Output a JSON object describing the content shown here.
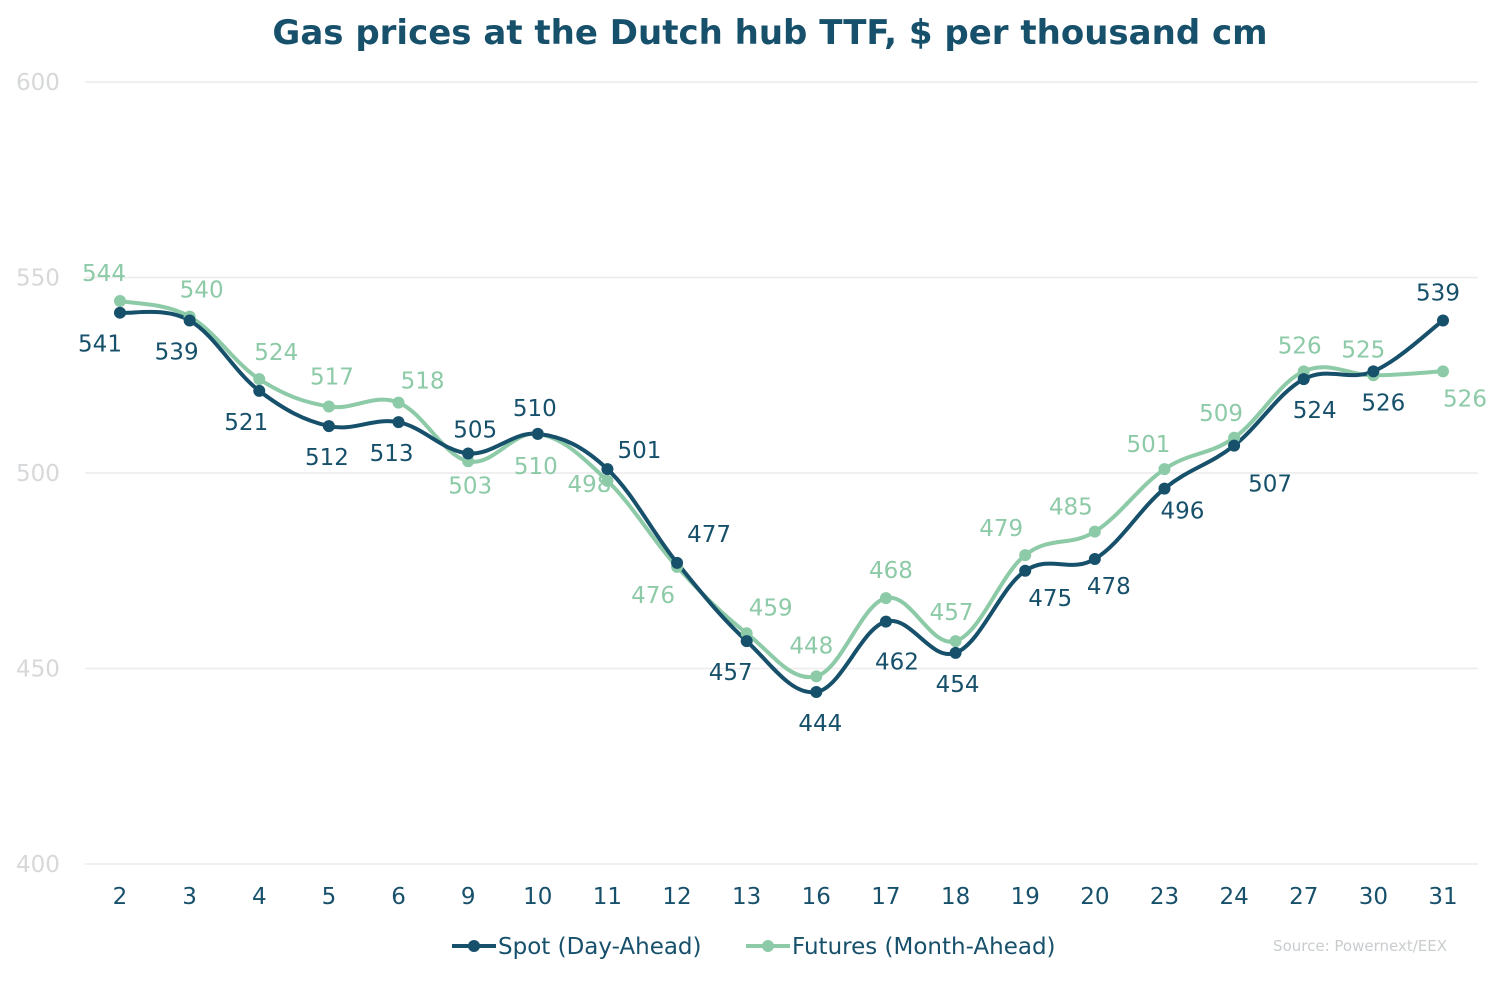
{
  "chart_data": {
    "type": "line",
    "title": "Gas prices at the Dutch hub TTF, $ per thousand cm",
    "source": "Source: Powernext/EEX",
    "categories": [
      "2",
      "3",
      "4",
      "5",
      "6",
      "9",
      "10",
      "11",
      "12",
      "13",
      "16",
      "17",
      "18",
      "19",
      "20",
      "23",
      "24",
      "27",
      "30",
      "31"
    ],
    "ylim": [
      400,
      600
    ],
    "yticks": [
      400,
      450,
      500,
      550,
      600
    ],
    "grid": true,
    "legend_position": "bottom",
    "series": [
      {
        "name": "Spot (Day-Ahead)",
        "color": "#17506b",
        "values": [
          541,
          539,
          521,
          512,
          513,
          505,
          510,
          501,
          477,
          457,
          444,
          462,
          454,
          475,
          478,
          496,
          507,
          524,
          526,
          539
        ],
        "labels": [
          "541",
          "539",
          "521",
          "512",
          "513",
          "505",
          "510",
          "501",
          "477",
          "457",
          "444",
          "462",
          "454",
          "475",
          "478",
          "496",
          "507",
          "524",
          "526",
          "539"
        ]
      },
      {
        "name": "Futures (Month-Ahead)",
        "color": "#8dcaa7",
        "values": [
          544,
          540,
          524,
          517,
          518,
          503,
          510,
          498,
          476,
          459,
          448,
          468,
          457,
          479,
          485,
          501,
          509,
          526,
          525,
          526
        ],
        "labels": [
          "544",
          "540",
          "524",
          "517",
          "518",
          "503",
          "510",
          "498",
          "476",
          "459",
          "448",
          "468",
          "457",
          "479",
          "485",
          "501",
          "509",
          "526",
          "525",
          "526"
        ]
      }
    ],
    "colors": {
      "title": "#17506b",
      "axis_text": "#17506b",
      "ytick_text": "#d6d8da",
      "grid": "#ececec",
      "source_text": "#c9ccce"
    }
  }
}
